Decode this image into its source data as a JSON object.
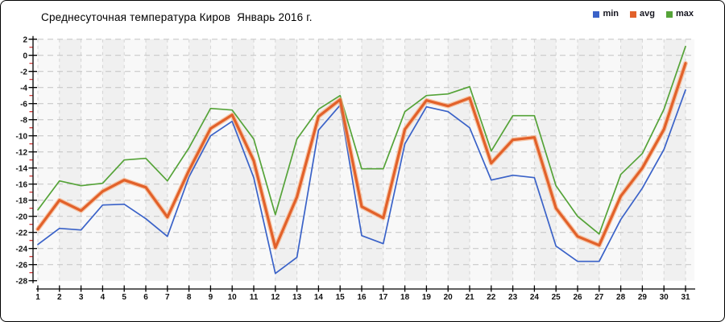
{
  "chart_data": {
    "type": "line",
    "title": "Среднесуточная температура Киров  Январь 2016 г.",
    "x": [
      1,
      2,
      3,
      4,
      5,
      6,
      7,
      8,
      9,
      10,
      11,
      12,
      13,
      14,
      15,
      16,
      17,
      18,
      19,
      20,
      21,
      22,
      23,
      24,
      25,
      26,
      27,
      28,
      29,
      30,
      31
    ],
    "y_ticks": [
      2,
      0,
      -2,
      -4,
      -6,
      -8,
      -10,
      -12,
      -14,
      -16,
      -18,
      -20,
      -22,
      -24,
      -26,
      -28
    ],
    "ylim": [
      -28,
      2
    ],
    "xlim": [
      1,
      31
    ],
    "grid": true,
    "legend_position": "top-right",
    "series": [
      {
        "name": "min",
        "color": "#3a62c8",
        "values": [
          -23.5,
          -21.5,
          -21.7,
          -18.6,
          -18.5,
          -20.3,
          -22.5,
          -15.1,
          -10.0,
          -8.2,
          -15.2,
          -27.1,
          -25.1,
          -9.3,
          -6.2,
          -22.4,
          -23.4,
          -11.0,
          -6.4,
          -7.0,
          -9.0,
          -15.5,
          -14.9,
          -15.2,
          -23.7,
          -25.6,
          -25.6,
          -20.4,
          -16.5,
          -11.7,
          -4.3
        ]
      },
      {
        "name": "avg",
        "color": "#e2612a",
        "halo_color": "#f6b287",
        "values": [
          -21.6,
          -18.0,
          -19.3,
          -16.9,
          -15.5,
          -16.4,
          -20.1,
          -14.3,
          -9.1,
          -7.4,
          -13.1,
          -23.9,
          -17.6,
          -7.6,
          -5.5,
          -18.8,
          -20.2,
          -9.2,
          -5.6,
          -6.3,
          -5.3,
          -13.4,
          -10.5,
          -10.2,
          -19.0,
          -22.5,
          -23.6,
          -17.5,
          -14.0,
          -9.2,
          -1.0
        ]
      },
      {
        "name": "max",
        "color": "#55a338",
        "values": [
          -19.2,
          -15.6,
          -16.2,
          -15.9,
          -13.0,
          -12.8,
          -15.6,
          -11.5,
          -6.6,
          -6.8,
          -10.4,
          -19.8,
          -10.4,
          -6.7,
          -5.0,
          -14.1,
          -14.1,
          -7.0,
          -5.0,
          -4.8,
          -3.9,
          -11.9,
          -7.5,
          -7.5,
          -16.2,
          -20.0,
          -22.2,
          -14.8,
          -12.2,
          -6.7,
          1.1
        ]
      }
    ],
    "style_colors": {
      "band_light": "#f8f8f8",
      "band_dark": "#f0f0f0",
      "grid_horizontal": "#c3c3c3",
      "grid_vertical": "#d4d4d4",
      "axis": "#000000",
      "minor_tick": "#cc2222",
      "tick_label": "#111111"
    }
  }
}
